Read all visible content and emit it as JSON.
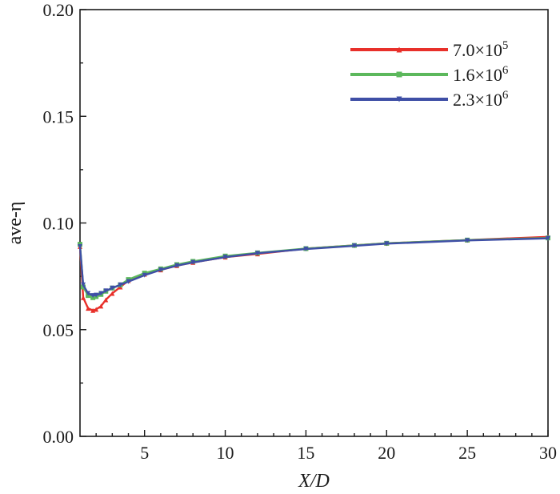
{
  "chart_data": {
    "type": "line",
    "title": "",
    "xlabel": "X/D",
    "ylabel": "ave-η",
    "xlim": [
      1,
      30
    ],
    "ylim": [
      0.0,
      0.2
    ],
    "xticks": [
      5,
      10,
      15,
      20,
      25,
      30
    ],
    "yticks": [
      0.0,
      0.05,
      0.1,
      0.15,
      0.2
    ],
    "ytick_labels": [
      "0.00",
      "0.05",
      "0.10",
      "0.15",
      "0.20"
    ],
    "grid": false,
    "legend_position": "top-right",
    "series": [
      {
        "name": "7.0×10⁵",
        "label_base": "7.0×10",
        "label_exp": "5",
        "color": "#e8302a",
        "marker": "triangle-up",
        "x": [
          1.0,
          1.2,
          1.5,
          1.8,
          2.0,
          2.3,
          2.6,
          3.0,
          3.5,
          4.0,
          5.0,
          6.0,
          7.0,
          8.0,
          10.0,
          12.0,
          15.0,
          18.0,
          20.0,
          25.0,
          30.0
        ],
        "y": [
          0.089,
          0.065,
          0.06,
          0.059,
          0.0595,
          0.061,
          0.064,
          0.067,
          0.07,
          0.073,
          0.076,
          0.078,
          0.08,
          0.0815,
          0.084,
          0.0855,
          0.088,
          0.0895,
          0.0905,
          0.092,
          0.0935
        ]
      },
      {
        "name": "1.6×10⁶",
        "label_base": "1.6×10",
        "label_exp": "6",
        "color": "#5cb85c",
        "marker": "square",
        "x": [
          1.0,
          1.2,
          1.5,
          1.8,
          2.0,
          2.3,
          2.6,
          3.0,
          3.5,
          4.0,
          5.0,
          6.0,
          7.0,
          8.0,
          10.0,
          12.0,
          15.0,
          18.0,
          20.0,
          25.0,
          30.0
        ],
        "y": [
          0.09,
          0.07,
          0.066,
          0.065,
          0.0655,
          0.0665,
          0.068,
          0.0695,
          0.071,
          0.0735,
          0.0765,
          0.0785,
          0.0805,
          0.082,
          0.0845,
          0.086,
          0.088,
          0.0895,
          0.0905,
          0.092,
          0.093
        ]
      },
      {
        "name": "2.3×10⁶",
        "label_base": "2.3×10",
        "label_exp": "6",
        "color": "#3f4fa6",
        "marker": "triangle-down",
        "x": [
          1.0,
          1.2,
          1.5,
          1.8,
          2.0,
          2.3,
          2.6,
          3.0,
          3.5,
          4.0,
          5.0,
          6.0,
          7.0,
          8.0,
          10.0,
          12.0,
          15.0,
          18.0,
          20.0,
          25.0,
          30.0
        ],
        "y": [
          0.089,
          0.071,
          0.067,
          0.066,
          0.0662,
          0.067,
          0.0682,
          0.0695,
          0.071,
          0.0725,
          0.0755,
          0.078,
          0.08,
          0.0815,
          0.084,
          0.0858,
          0.0878,
          0.0893,
          0.0903,
          0.0918,
          0.0928
        ]
      }
    ]
  }
}
